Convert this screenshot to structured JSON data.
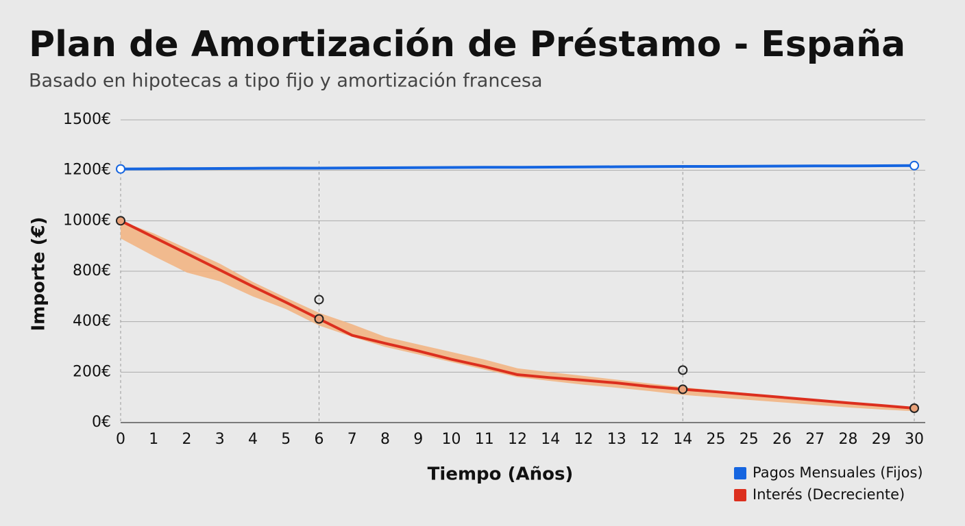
{
  "chart_data": {
    "type": "line",
    "title": "Plan de Amortización de Préstamo - España",
    "subtitle": "Basado en hipotecas a tipo fijo y amortización francesa",
    "x_label": "Tiempo (Años)",
    "y_label": "Importe (€)",
    "categories": [
      "0",
      "1",
      "2",
      "3",
      "4",
      "5",
      "6",
      "7",
      "8",
      "9",
      "10",
      "11",
      "12",
      "14",
      "12",
      "13",
      "12",
      "14",
      "25",
      "25",
      "26",
      "27",
      "28",
      "29",
      "30"
    ],
    "ylim": [
      0,
      1500
    ],
    "yticks": [
      {
        "value": 0,
        "label": "0€"
      },
      {
        "value": 200,
        "label": "200€"
      },
      {
        "value": 400,
        "label": "400€"
      },
      {
        "value": 800,
        "label": "800€"
      },
      {
        "value": 1000,
        "label": "1000€"
      },
      {
        "value": 1200,
        "label": "1200€"
      },
      {
        "value": 1500,
        "label": "1500€"
      }
    ],
    "grid": true,
    "vlines": [
      0,
      6,
      17,
      24
    ],
    "legend": "bottom-right",
    "series": [
      {
        "name": "Pagos Mensuales (Fijos)",
        "color": "#1565e0",
        "values": [
          1208,
          1209,
          1210,
          1211,
          1212,
          1213,
          1213,
          1214,
          1215,
          1216,
          1217,
          1218,
          1218,
          1219,
          1220,
          1221,
          1222,
          1223,
          1223,
          1224,
          1225,
          1226,
          1226,
          1227,
          1228
        ],
        "markers": [
          0,
          24
        ],
        "marker_fill": "#ffffff"
      },
      {
        "name": "Interés (Decreciente)",
        "color": "#dc2f1e",
        "values": [
          1000,
          935,
          870,
          805,
          679,
          553,
          422,
          346,
          314,
          284,
          251,
          222,
          190,
          178,
          168,
          157,
          143,
          132,
          122,
          111,
          100,
          89,
          78,
          68,
          57
        ],
        "markers": [
          0,
          6,
          17,
          24
        ],
        "marker_fill": "#e9a27a",
        "band": {
          "color": "#f2b27e",
          "upper": [
            1000,
            950,
            890,
            830,
            715,
            590,
            470,
            390,
            340,
            310,
            280,
            250,
            215,
            200,
            185,
            170,
            155,
            140,
            128,
            116,
            104,
            92,
            80,
            70,
            60
          ],
          "lower": [
            930,
            860,
            790,
            720,
            600,
            500,
            385,
            340,
            300,
            270,
            240,
            210,
            180,
            165,
            150,
            138,
            125,
            110,
            100,
            90,
            80,
            70,
            60,
            52,
            45
          ]
        }
      }
    ],
    "extra_points": {
      "indices": [
        6,
        17
      ],
      "values": [
        575,
        208
      ]
    }
  }
}
